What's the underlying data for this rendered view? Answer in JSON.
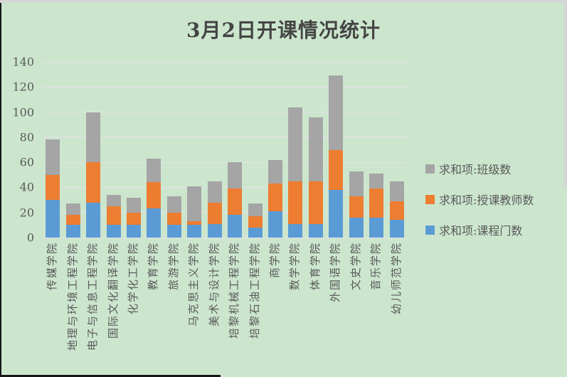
{
  "window": {
    "title": "3月2日开课情况统计"
  },
  "colors": {
    "background": "#cce6ce",
    "frame_edge": "#d6d6d6",
    "window_border": "#161616",
    "title_text": "#454545",
    "axis_text": "#595959",
    "gridline": "#e7e0ea",
    "series_blue": "#5b9bd5",
    "series_orange": "#ed7d31",
    "series_gray": "#a5a5a5"
  },
  "chart_data": {
    "type": "bar",
    "stacked": true,
    "title": "3月2日开课情况统计",
    "categories": [
      "传媒学院",
      "地理与环境工程学院",
      "电子与信息工程学院",
      "国际文化翻译学院",
      "化学化工学院",
      "教育学院",
      "旅游学院",
      "马克思主义学院",
      "美术与设计学院",
      "培黎机械工程学院",
      "培黎石油工程学院",
      "商学院",
      "数学学院",
      "体育学院",
      "外国语学院",
      "文史学院",
      "音乐学院",
      "幼儿师范学院"
    ],
    "series": [
      {
        "name": "求和项:课程门数",
        "color_key": "series_blue",
        "values": [
          30,
          10,
          28,
          10,
          10,
          23,
          10,
          10,
          11,
          18,
          8,
          21,
          11,
          11,
          38,
          16,
          16,
          14
        ]
      },
      {
        "name": "求和项:授课教师数",
        "color_key": "series_orange",
        "values": [
          20,
          8,
          32,
          15,
          10,
          21,
          10,
          3,
          17,
          21,
          9,
          22,
          34,
          34,
          32,
          17,
          23,
          15
        ]
      },
      {
        "name": "求和项:班级数",
        "color_key": "series_gray",
        "values": [
          28,
          9,
          40,
          9,
          12,
          19,
          13,
          28,
          17,
          21,
          10,
          19,
          59,
          51,
          59,
          20,
          12,
          16
        ]
      }
    ],
    "totals": [
      78,
      27,
      100,
      34,
      32,
      63,
      33,
      41,
      45,
      60,
      27,
      62,
      104,
      96,
      129,
      53,
      51,
      45
    ],
    "y_axis": {
      "min": 0,
      "max": 140,
      "tick_step": 20,
      "ticks": [
        0,
        20,
        40,
        60,
        80,
        100,
        120,
        140
      ]
    },
    "xlabel": "",
    "ylabel": "",
    "grid": "horizontal",
    "legend": {
      "position": "right",
      "order_top_to_bottom": [
        "求和项:班级数",
        "求和项:授课教师数",
        "求和项:课程门数"
      ]
    }
  }
}
